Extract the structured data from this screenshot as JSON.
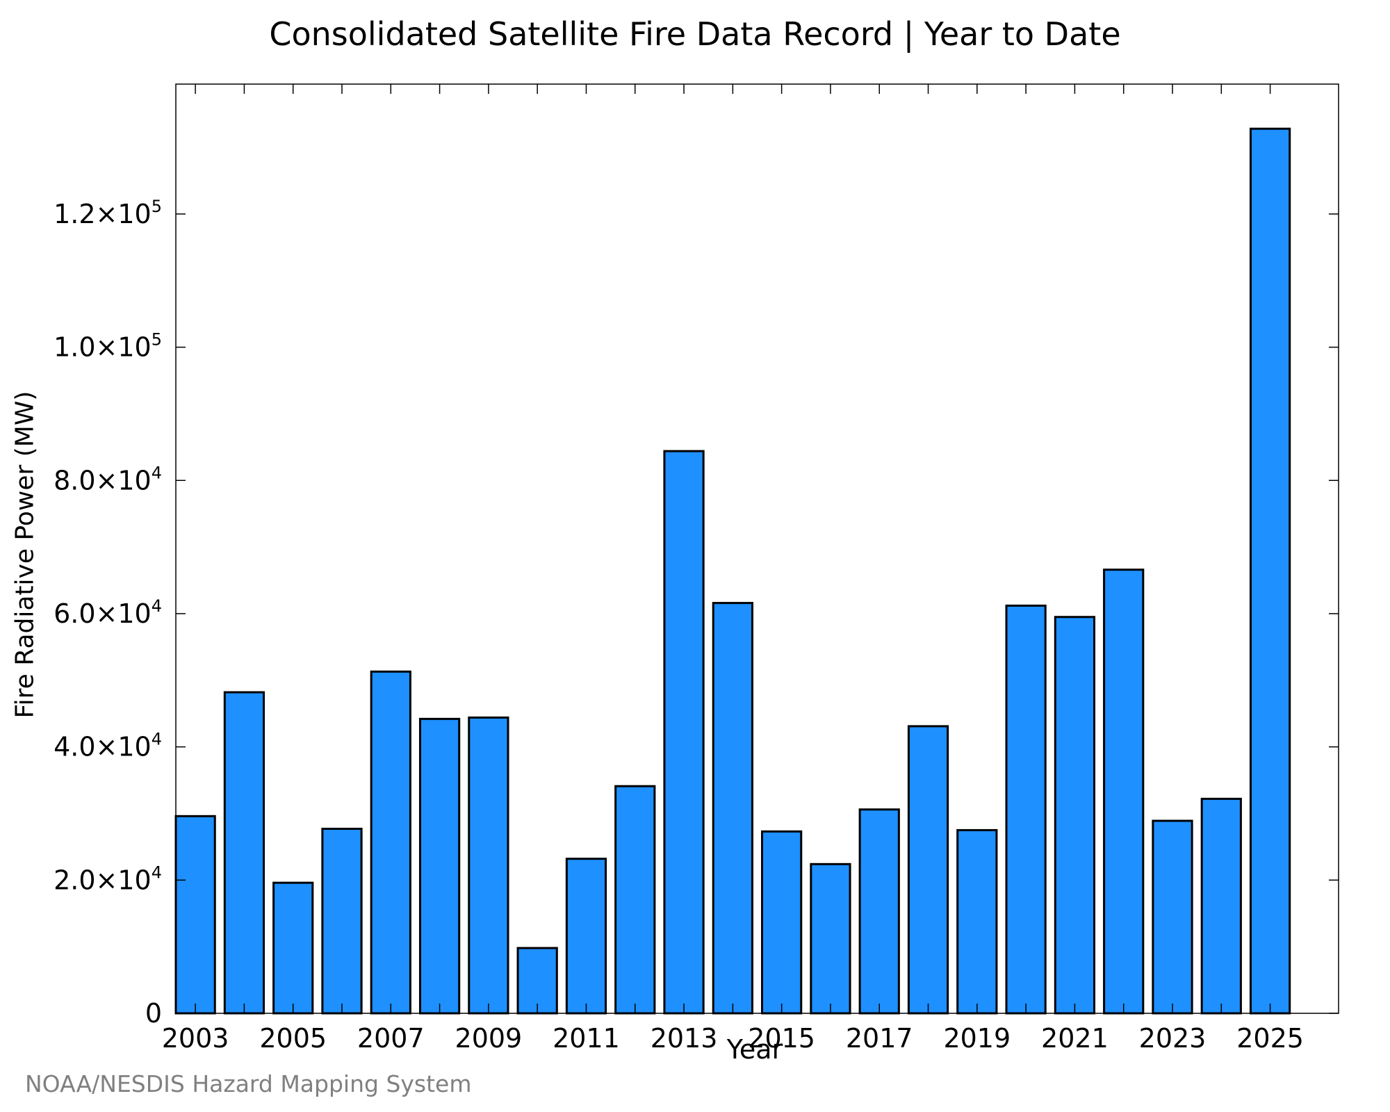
{
  "chart_data": {
    "type": "bar",
    "title": "Consolidated Satellite Fire Data Record | Year to Date",
    "xlabel": "Year",
    "ylabel": "Fire Radiative Power (MW)",
    "categories": [
      2003,
      2004,
      2005,
      2006,
      2007,
      2008,
      2009,
      2010,
      2011,
      2012,
      2013,
      2014,
      2015,
      2016,
      2017,
      2018,
      2019,
      2020,
      2021,
      2022,
      2023,
      2024,
      2025
    ],
    "values": [
      29600,
      48200,
      19600,
      27700,
      51300,
      44200,
      44400,
      9800,
      23200,
      34100,
      84400,
      61600,
      27300,
      22400,
      30600,
      43100,
      27500,
      61200,
      59500,
      66600,
      28900,
      32200,
      132800
    ],
    "x_tick_labels": [
      "2003",
      "2005",
      "2007",
      "2009",
      "2011",
      "2013",
      "2015",
      "2017",
      "2019",
      "2021",
      "2023",
      "2025"
    ],
    "y_ticks": [
      {
        "value": 0,
        "mantissa": "0",
        "exponent": ""
      },
      {
        "value": 20000,
        "mantissa": "2.0×10",
        "exponent": "4"
      },
      {
        "value": 40000,
        "mantissa": "4.0×10",
        "exponent": "4"
      },
      {
        "value": 60000,
        "mantissa": "6.0×10",
        "exponent": "4"
      },
      {
        "value": 80000,
        "mantissa": "8.0×10",
        "exponent": "4"
      },
      {
        "value": 100000,
        "mantissa": "1.0×10",
        "exponent": "5"
      },
      {
        "value": 120000,
        "mantissa": "1.2×10",
        "exponent": "5"
      }
    ],
    "ylim": [
      0,
      139500
    ],
    "xlim": [
      2002.6,
      2026.4
    ],
    "grid": false,
    "colors": {
      "bar_fill": "#1e90ff",
      "bar_edge": "#000000"
    }
  },
  "credit": "NOAA/NESDIS Hazard Mapping System"
}
